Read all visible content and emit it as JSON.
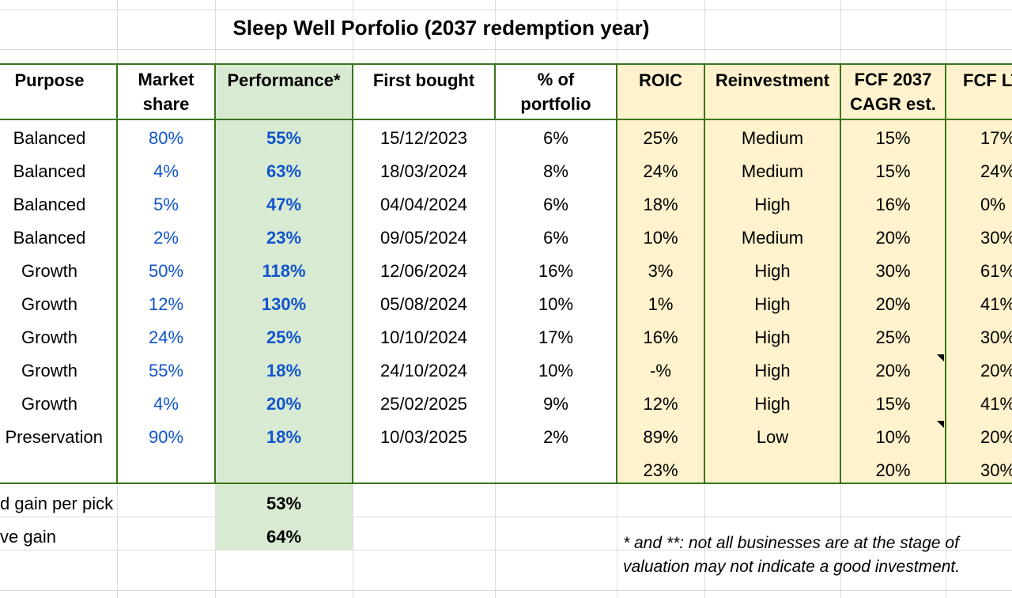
{
  "title": "Sleep Well Porfolio (2037 redemption year)",
  "headers": {
    "purpose": "Purpose",
    "market_share_1": "Market",
    "market_share_2": "share",
    "performance": "Performance*",
    "first_bought": "First bought",
    "pct_1": "% of",
    "pct_2": "portfolio",
    "roic": "ROIC",
    "reinvestment": "Reinvestment",
    "fcf2037_1": "FCF 2037",
    "fcf2037_2": "CAGR est.",
    "fcflt": "FCF LT"
  },
  "rows": [
    {
      "purpose": "Balanced",
      "market_share": "80%",
      "performance": "55%",
      "first_bought": "15/12/2023",
      "pct": "6%",
      "roic": "25%",
      "reinvestment": "Medium",
      "fcf2037": "15%",
      "fcflt": "17%"
    },
    {
      "purpose": "Balanced",
      "market_share": "4%",
      "performance": "63%",
      "first_bought": "18/03/2024",
      "pct": "8%",
      "roic": "24%",
      "reinvestment": "Medium",
      "fcf2037": "15%",
      "fcflt": "24%"
    },
    {
      "purpose": "Balanced",
      "market_share": "5%",
      "performance": "47%",
      "first_bought": "04/04/2024",
      "pct": "6%",
      "roic": "18%",
      "reinvestment": "High",
      "fcf2037": "16%",
      "fcflt": "0%"
    },
    {
      "purpose": "Balanced",
      "market_share": "2%",
      "performance": "23%",
      "first_bought": "09/05/2024",
      "pct": "6%",
      "roic": "10%",
      "reinvestment": "Medium",
      "fcf2037": "20%",
      "fcflt": "30%"
    },
    {
      "purpose": "Growth",
      "market_share": "50%",
      "performance": "118%",
      "first_bought": "12/06/2024",
      "pct": "16%",
      "roic": "3%",
      "reinvestment": "High",
      "fcf2037": "30%",
      "fcflt": "61%"
    },
    {
      "purpose": "Growth",
      "market_share": "12%",
      "performance": "130%",
      "first_bought": "05/08/2024",
      "pct": "10%",
      "roic": "1%",
      "reinvestment": "High",
      "fcf2037": "20%",
      "fcflt": "41%"
    },
    {
      "purpose": "Growth",
      "market_share": "24%",
      "performance": "25%",
      "first_bought": "10/10/2024",
      "pct": "17%",
      "roic": "16%",
      "reinvestment": "High",
      "fcf2037": "25%",
      "fcflt": "30%"
    },
    {
      "purpose": "Growth",
      "market_share": "55%",
      "performance": "18%",
      "first_bought": "24/10/2024",
      "pct": "10%",
      "roic": "-%",
      "reinvestment": "High",
      "fcf2037": "20%",
      "fcflt": "20%"
    },
    {
      "purpose": "Growth",
      "market_share": "4%",
      "performance": "20%",
      "first_bought": "25/02/2025",
      "pct": "9%",
      "roic": "12%",
      "reinvestment": "High",
      "fcf2037": "15%",
      "fcflt": "41%"
    },
    {
      "purpose": "Preservation",
      "market_share": "90%",
      "performance": "18%",
      "first_bought": "10/03/2025",
      "pct": "2%",
      "roic": "89%",
      "reinvestment": "Low",
      "fcf2037": "10%",
      "fcflt": "20%"
    }
  ],
  "totals": {
    "roic": "23%",
    "fcf2037": "20%",
    "fcflt": "30%"
  },
  "summary": [
    {
      "label": "d gain per pick",
      "value": "53%"
    },
    {
      "label": "ve gain",
      "value": "64%"
    }
  ],
  "note": {
    "line1": "* and **: not all businesses are at the stage of",
    "line2": "valuation may not indicate a good investment."
  },
  "colors": {
    "border_green": "#38761d",
    "performance_fill": "#d9ead3",
    "yellow_fill": "#fff2cc",
    "blue_text": "#1155cc"
  }
}
